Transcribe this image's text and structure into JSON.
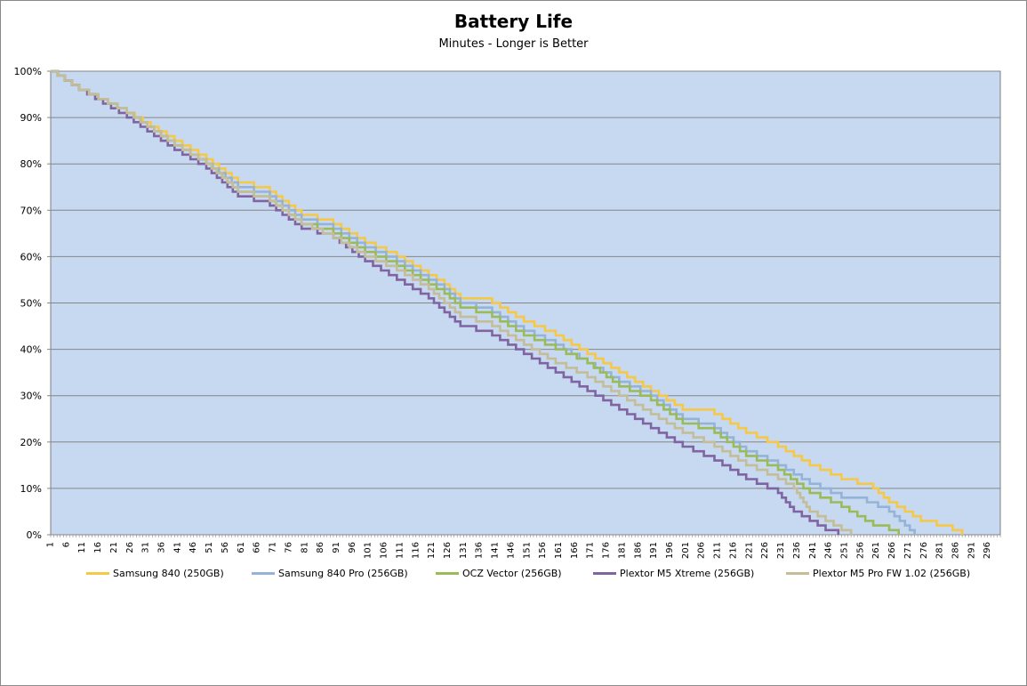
{
  "chart_data": {
    "type": "line",
    "title": "Battery Life",
    "subtitle": "Minutes - Longer is Better",
    "xlabel": "",
    "ylabel": "",
    "xlim": [
      1,
      300
    ],
    "ylim": [
      0,
      100
    ],
    "y_ticks": [
      "0%",
      "10%",
      "20%",
      "30%",
      "40%",
      "50%",
      "60%",
      "70%",
      "80%",
      "90%",
      "100%"
    ],
    "x_ticks": [
      1,
      6,
      11,
      16,
      21,
      26,
      31,
      36,
      41,
      46,
      51,
      56,
      61,
      66,
      71,
      76,
      81,
      86,
      91,
      96,
      101,
      106,
      111,
      116,
      121,
      126,
      131,
      136,
      141,
      146,
      151,
      156,
      161,
      166,
      171,
      176,
      181,
      186,
      191,
      196,
      201,
      206,
      211,
      216,
      221,
      226,
      231,
      236,
      241,
      246,
      251,
      256,
      261,
      266,
      271,
      276,
      281,
      286,
      291,
      296
    ],
    "grid": true,
    "legend_position": "bottom",
    "plot_background": "#c6d9f1",
    "series": [
      {
        "name": "Samsung 840 (250GB)",
        "color": "#f6c845",
        "points": [
          [
            1,
            100
          ],
          [
            10,
            96
          ],
          [
            25,
            91
          ],
          [
            40,
            85
          ],
          [
            50,
            81
          ],
          [
            60,
            76
          ],
          [
            70,
            74
          ],
          [
            80,
            69
          ],
          [
            90,
            67
          ],
          [
            100,
            63
          ],
          [
            110,
            60
          ],
          [
            120,
            56
          ],
          [
            125,
            54
          ],
          [
            130,
            51
          ],
          [
            140,
            50
          ],
          [
            150,
            46
          ],
          [
            160,
            43
          ],
          [
            170,
            39
          ],
          [
            180,
            35
          ],
          [
            190,
            31
          ],
          [
            200,
            27
          ],
          [
            210,
            26
          ],
          [
            220,
            22
          ],
          [
            230,
            19
          ],
          [
            240,
            15
          ],
          [
            250,
            12
          ],
          [
            255,
            11
          ],
          [
            260,
            10
          ],
          [
            265,
            7
          ],
          [
            270,
            5
          ],
          [
            275,
            3
          ],
          [
            280,
            2
          ],
          [
            285,
            1
          ],
          [
            288,
            0
          ]
        ]
      },
      {
        "name": "Samsung 840 Pro (256GB)",
        "color": "#95b3d7",
        "points": [
          [
            1,
            100
          ],
          [
            10,
            96
          ],
          [
            25,
            91
          ],
          [
            40,
            84
          ],
          [
            50,
            80
          ],
          [
            60,
            75
          ],
          [
            70,
            73
          ],
          [
            80,
            68
          ],
          [
            90,
            66
          ],
          [
            100,
            62
          ],
          [
            110,
            59
          ],
          [
            120,
            55
          ],
          [
            125,
            53
          ],
          [
            130,
            50
          ],
          [
            140,
            48
          ],
          [
            150,
            44
          ],
          [
            160,
            41
          ],
          [
            170,
            37
          ],
          [
            180,
            33
          ],
          [
            190,
            30
          ],
          [
            200,
            25
          ],
          [
            210,
            23
          ],
          [
            220,
            18
          ],
          [
            230,
            15
          ],
          [
            240,
            11
          ],
          [
            250,
            8
          ],
          [
            258,
            7
          ],
          [
            265,
            5
          ],
          [
            270,
            2
          ],
          [
            273,
            0
          ]
        ]
      },
      {
        "name": "OCZ Vector (256GB)",
        "color": "#9bbb59",
        "points": [
          [
            1,
            100
          ],
          [
            10,
            96
          ],
          [
            25,
            91
          ],
          [
            40,
            84
          ],
          [
            50,
            80
          ],
          [
            60,
            74
          ],
          [
            70,
            72
          ],
          [
            80,
            67
          ],
          [
            90,
            65
          ],
          [
            100,
            61
          ],
          [
            110,
            58
          ],
          [
            120,
            54
          ],
          [
            125,
            52
          ],
          [
            130,
            49
          ],
          [
            140,
            47
          ],
          [
            150,
            43
          ],
          [
            160,
            40
          ],
          [
            170,
            37
          ],
          [
            180,
            32
          ],
          [
            190,
            29
          ],
          [
            200,
            24
          ],
          [
            210,
            22
          ],
          [
            220,
            17
          ],
          [
            230,
            14
          ],
          [
            240,
            9
          ],
          [
            250,
            6
          ],
          [
            255,
            4
          ],
          [
            260,
            2
          ],
          [
            265,
            1
          ],
          [
            268,
            0
          ]
        ]
      },
      {
        "name": "Plextor M5 Xtreme (256GB)",
        "color": "#8064a2",
        "points": [
          [
            1,
            100
          ],
          [
            10,
            96
          ],
          [
            25,
            90
          ],
          [
            40,
            83
          ],
          [
            50,
            79
          ],
          [
            60,
            73
          ],
          [
            70,
            71
          ],
          [
            80,
            66
          ],
          [
            90,
            64
          ],
          [
            100,
            59
          ],
          [
            110,
            55
          ],
          [
            120,
            51
          ],
          [
            125,
            48
          ],
          [
            130,
            45
          ],
          [
            140,
            43
          ],
          [
            150,
            39
          ],
          [
            160,
            35
          ],
          [
            170,
            31
          ],
          [
            180,
            27
          ],
          [
            190,
            23
          ],
          [
            200,
            19
          ],
          [
            210,
            16
          ],
          [
            220,
            12
          ],
          [
            230,
            9
          ],
          [
            235,
            5
          ],
          [
            240,
            3
          ],
          [
            245,
            1
          ],
          [
            249,
            0
          ]
        ]
      },
      {
        "name": "Plextor M5 Pro FW 1.02 (256GB)",
        "color": "#c4bd97",
        "points": [
          [
            1,
            100
          ],
          [
            10,
            96
          ],
          [
            25,
            91
          ],
          [
            40,
            84
          ],
          [
            50,
            80
          ],
          [
            60,
            74
          ],
          [
            70,
            72
          ],
          [
            80,
            67
          ],
          [
            90,
            64
          ],
          [
            100,
            60
          ],
          [
            110,
            57
          ],
          [
            120,
            53
          ],
          [
            125,
            50
          ],
          [
            130,
            47
          ],
          [
            140,
            45
          ],
          [
            150,
            41
          ],
          [
            160,
            37
          ],
          [
            170,
            34
          ],
          [
            180,
            30
          ],
          [
            190,
            26
          ],
          [
            200,
            22
          ],
          [
            210,
            19
          ],
          [
            220,
            15
          ],
          [
            230,
            12
          ],
          [
            235,
            10
          ],
          [
            240,
            5
          ],
          [
            245,
            3
          ],
          [
            250,
            1
          ],
          [
            253,
            0
          ]
        ]
      }
    ]
  }
}
